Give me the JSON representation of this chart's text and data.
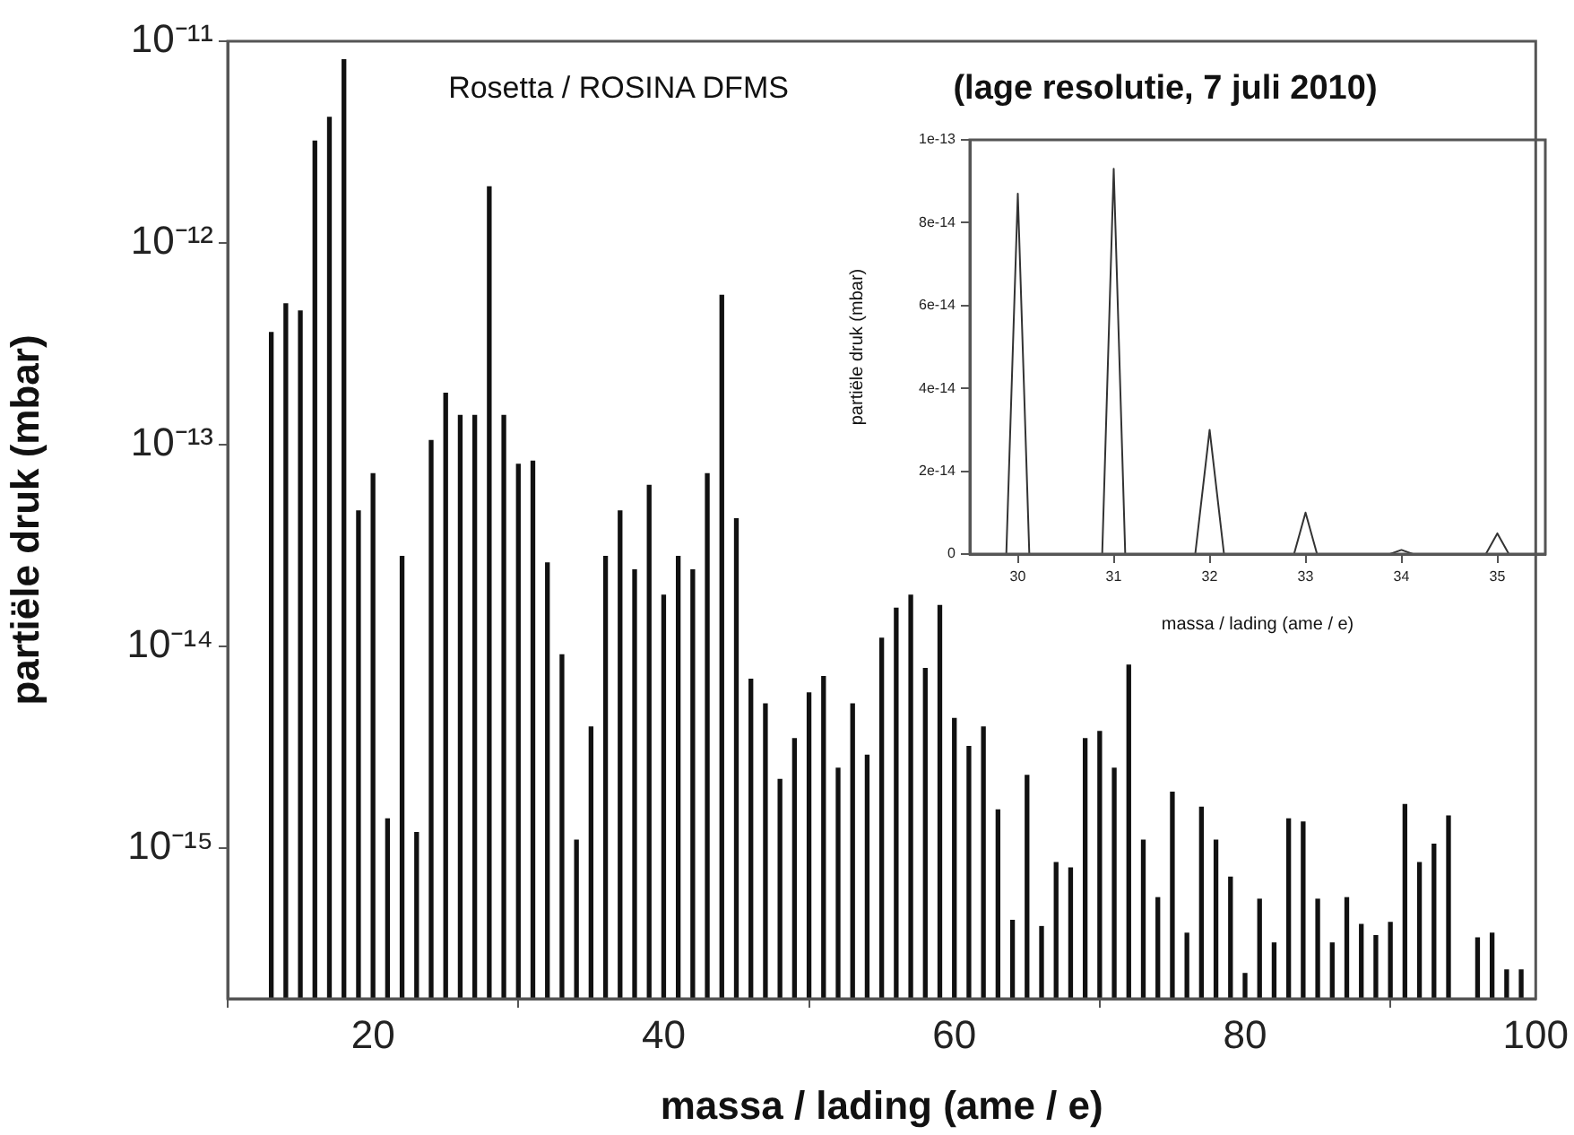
{
  "chart_data": [
    {
      "type": "bar",
      "xlabel": "massa / lading (ame / e)",
      "ylabel": "partiële druk (mbar)",
      "log": true,
      "grid": false,
      "annotations": [
        "Rosetta / ROSINA DFMS",
        "(lage resolutie, 7 juli 2010)"
      ],
      "xlim": [
        10,
        100
      ],
      "xticks": [
        20,
        40,
        60,
        80,
        100
      ],
      "ylim": [
        1.8e-16,
        1e-11
      ],
      "yticks": [
        {
          "value": 1e-15,
          "label": "10⁻¹⁵"
        },
        {
          "value": 1e-14,
          "label": "10⁻¹⁴"
        },
        {
          "value": 1e-13,
          "label": "10⁻¹³"
        },
        {
          "value": 1e-12,
          "label": "10⁻¹²"
        },
        {
          "value": 1e-11,
          "label": "10⁻¹¹"
        }
      ],
      "series": [
        {
          "color": "#111111",
          "x": [
            13,
            14,
            15,
            16,
            17,
            18,
            19,
            20,
            21,
            22,
            23,
            24,
            25,
            26,
            27,
            28,
            29,
            30,
            31,
            32,
            33,
            34,
            35,
            36,
            37,
            38,
            39,
            40,
            41,
            42,
            43,
            44,
            45,
            46,
            47,
            48,
            49,
            50,
            51,
            52,
            53,
            54,
            55,
            56,
            57,
            58,
            59,
            60,
            61,
            62,
            63,
            64,
            65,
            66,
            67,
            68,
            69,
            70,
            71,
            72,
            73,
            74,
            75,
            76,
            77,
            78,
            79,
            80,
            81,
            82,
            83,
            84,
            85,
            86,
            87,
            88,
            89,
            90,
            91,
            92,
            93,
            94,
            96,
            97,
            98,
            99
          ],
          "values": [
            3.6e-13,
            5e-13,
            4.6e-13,
            3.2e-12,
            4.2e-12,
            8.1e-12,
            4.7e-14,
            7.2e-14,
            1.4e-15,
            2.8e-14,
            1.2e-15,
            1.05e-13,
            1.8e-13,
            1.4e-13,
            1.4e-13,
            1.9e-12,
            1.4e-13,
            8e-14,
            8.3e-14,
            2.6e-14,
            9.1e-15,
            1.1e-15,
            4e-15,
            2.8e-14,
            4.7e-14,
            2.4e-14,
            6.3e-14,
            1.8e-14,
            2.8e-14,
            2.4e-14,
            7.2e-14,
            5.5e-13,
            4.3e-14,
            6.9e-15,
            5.2e-15,
            2.2e-15,
            3.5e-15,
            5.9e-15,
            7.1e-15,
            2.5e-15,
            5.2e-15,
            2.9e-15,
            1.1e-14,
            1.55e-14,
            1.8e-14,
            7.8e-15,
            1.6e-14,
            4.4e-15,
            3.2e-15,
            4e-15,
            1.55e-15,
            4.4e-16,
            2.3e-15,
            4.1e-16,
            8.5e-16,
            8e-16,
            3.5e-15,
            3.8e-15,
            2.5e-15,
            8.1e-15,
            1.1e-15,
            5.7e-16,
            1.9e-15,
            3.8e-16,
            1.6e-15,
            1.1e-15,
            7.2e-16,
            2.4e-16,
            5.6e-16,
            3.4e-16,
            1.4e-15,
            1.35e-15,
            5.6e-16,
            3.4e-16,
            5.7e-16,
            4.2e-16,
            3.7e-16,
            4.3e-16,
            1.65e-15,
            8.5e-16,
            1.05e-15,
            1.45e-15,
            3.6e-16,
            3.8e-16,
            2.5e-16,
            2.5e-16
          ]
        }
      ]
    },
    {
      "type": "line",
      "xlabel": "massa / lading (ame / e)",
      "ylabel": "partiële druk (mbar)",
      "grid": false,
      "marker": "none",
      "xlim": [
        29.5,
        35.5
      ],
      "xticks": [
        30,
        31,
        32,
        33,
        34,
        35
      ],
      "ylim": [
        0,
        1e-13
      ],
      "yticks": [
        0,
        {
          "value": 2e-14,
          "label": "2e-14"
        },
        {
          "value": 4e-14,
          "label": "4e-14"
        },
        {
          "value": 6e-14,
          "label": "6e-14"
        },
        {
          "value": 8e-14,
          "label": "8e-14"
        },
        {
          "value": 1e-13,
          "label": "1e-13"
        }
      ],
      "series": [
        {
          "color": "#333333",
          "x": [
            29.5,
            29.88,
            30,
            30.12,
            30.88,
            31,
            31.12,
            31.85,
            32,
            32.15,
            32.88,
            33,
            33.12,
            33.88,
            34,
            34.12,
            34.88,
            35,
            35.12,
            35.5
          ],
          "values": [
            0,
            0,
            8.7e-14,
            0,
            0,
            9.3e-14,
            0,
            0,
            3e-14,
            0,
            0,
            1e-14,
            0,
            0,
            1e-15,
            0,
            0,
            5e-15,
            0,
            0
          ]
        }
      ]
    }
  ]
}
